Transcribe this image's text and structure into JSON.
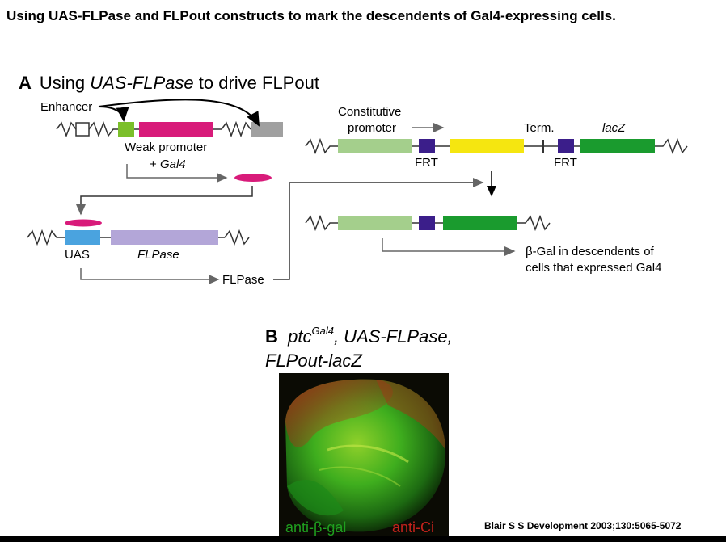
{
  "title": "Using UAS-FLPase and FLPout constructs to mark the descendents of Gal4-expressing cells.",
  "panel_a": {
    "letter": "A",
    "title_prefix": "Using ",
    "title_italic": "UAS-FLPase",
    "title_suffix": " to drive FLPout",
    "enhancer": "Enhancer",
    "weak_promoter": "Weak promoter",
    "plus_gal4_prefix": "+ ",
    "plus_gal4_italic": "Gal4",
    "uas": "UAS",
    "flpase_gene": "FLPase",
    "flpase_product": "FLPase",
    "constitutive": "Constitutive",
    "promoter": "promoter",
    "term": "Term.",
    "lacz": "lacZ",
    "frt_1": "FRT",
    "frt_2": "FRT",
    "result_line1": "β-Gal in descendents of",
    "result_line2": "cells that expressed Gal4"
  },
  "panel_b": {
    "letter": "B",
    "gene": "ptc",
    "superscript": "Gal4",
    "line1_rest": ", UAS-FLPase,",
    "line2": "FLPout-lacZ",
    "stain_green": "anti-β-gal",
    "stain_red": "anti-Ci"
  },
  "citation": "Blair S S Development 2003;130:5065-5072",
  "colors": {
    "enhancer_green": "#7bbf2a",
    "gal4_magenta": "#d81b7a",
    "uas_blue": "#4aa3df",
    "flpase_lavender": "#b3a6d8",
    "promoter_lightgreen": "#a4cf8c",
    "frt_purple": "#3b1e8a",
    "stop_yellow": "#f5e610",
    "lacz_green": "#1a9b2e",
    "gray_gene": "#a0a0a0",
    "arrow_gray": "#666666"
  }
}
